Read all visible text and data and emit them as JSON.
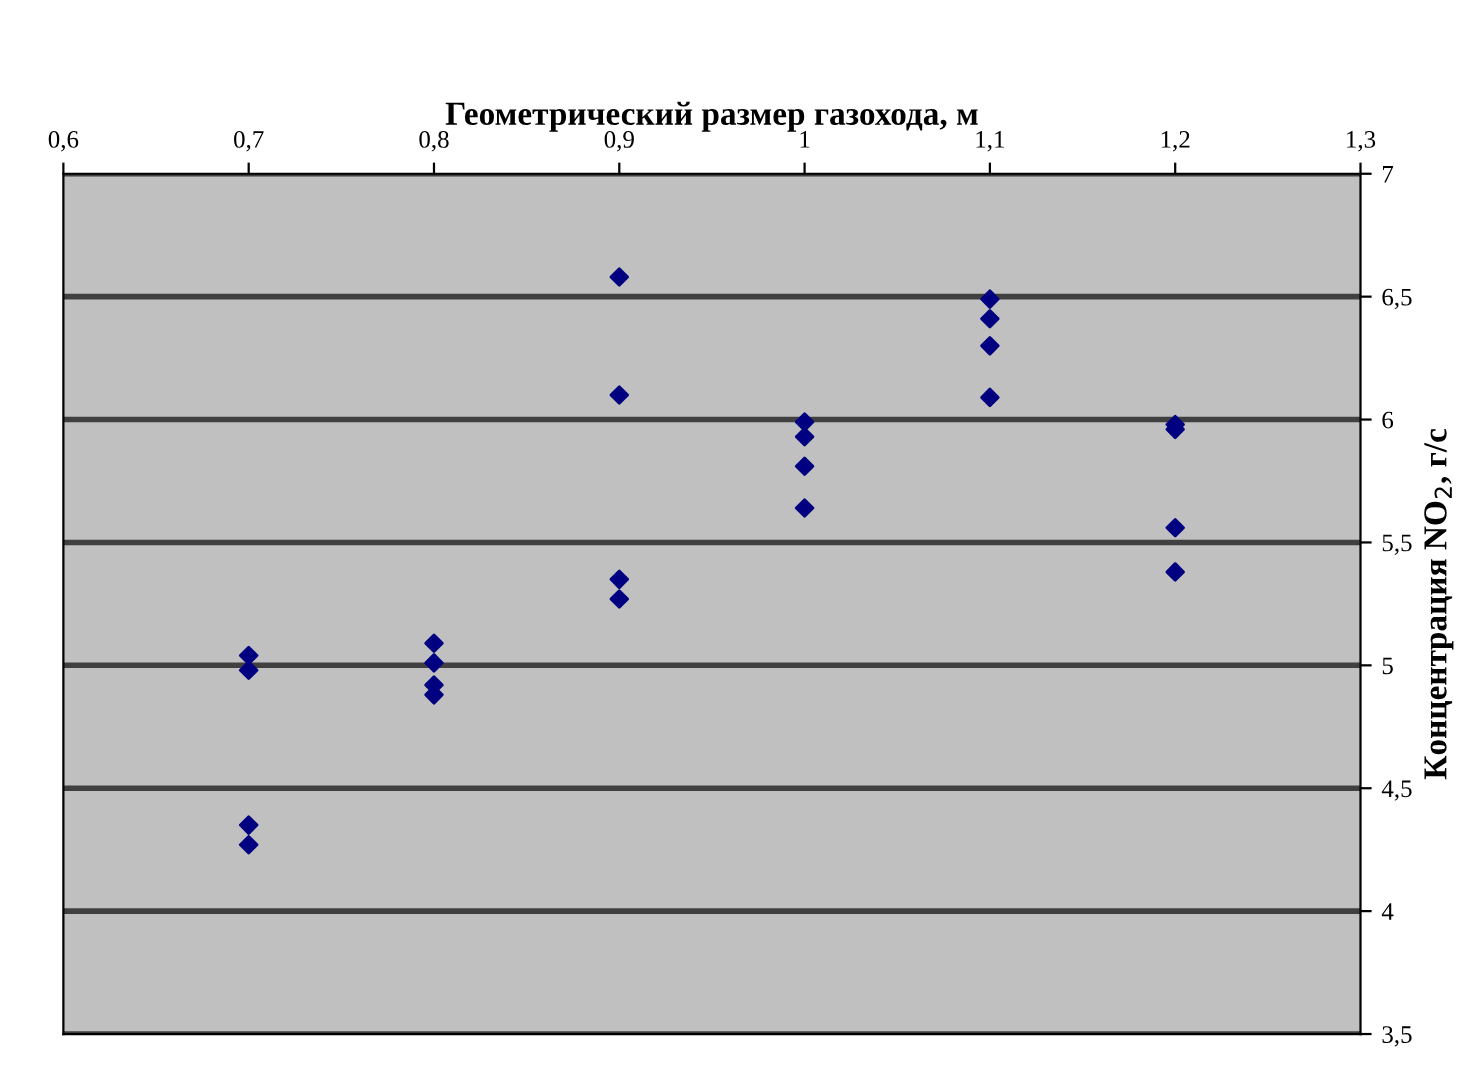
{
  "chart_data": {
    "type": "scatter",
    "xlabel": "Геометрический размер газохода, м",
    "ylabel": "Концентрация NO$_{2}$, г/с",
    "series": [
      {
        "color": "#000080",
        "x": [
          0.7,
          0.7,
          0.7,
          0.7,
          0.8,
          0.8,
          0.8,
          0.8,
          0.9,
          0.9,
          0.9,
          0.9,
          1.0,
          1.0,
          1.0,
          1.0,
          1.1,
          1.1,
          1.1,
          1.1,
          1.2,
          1.2,
          1.2,
          1.2
        ],
        "values": [
          5.04,
          4.98,
          4.35,
          4.27,
          5.09,
          5.01,
          4.92,
          4.88,
          6.58,
          6.1,
          5.35,
          5.27,
          5.99,
          5.93,
          5.81,
          5.64,
          6.49,
          6.41,
          6.3,
          6.09,
          5.98,
          5.96,
          5.56,
          5.38
        ]
      }
    ],
    "marker": "diamond",
    "grid": "y",
    "legend": false,
    "xlim": [
      0.6,
      1.3
    ],
    "xticks": [
      {
        "value": 0.6,
        "label": "0,6"
      },
      {
        "value": 0.7,
        "label": "0,7"
      },
      {
        "value": 0.8,
        "label": "0,8"
      },
      {
        "value": 0.9,
        "label": "0,9"
      },
      1,
      {
        "value": 1.1,
        "label": "1,1"
      },
      {
        "value": 1.2,
        "label": "1,2"
      },
      {
        "value": 1.3,
        "label": "1,3"
      }
    ],
    "ylim": [
      3.5,
      7
    ],
    "yticks": [
      {
        "value": 3.5,
        "label": "3,5"
      },
      4,
      {
        "value": 4.5,
        "label": "4,5"
      },
      5,
      {
        "value": 5.5,
        "label": "5,5"
      },
      6,
      {
        "value": 6.5,
        "label": "6,5"
      },
      7
    ]
  }
}
